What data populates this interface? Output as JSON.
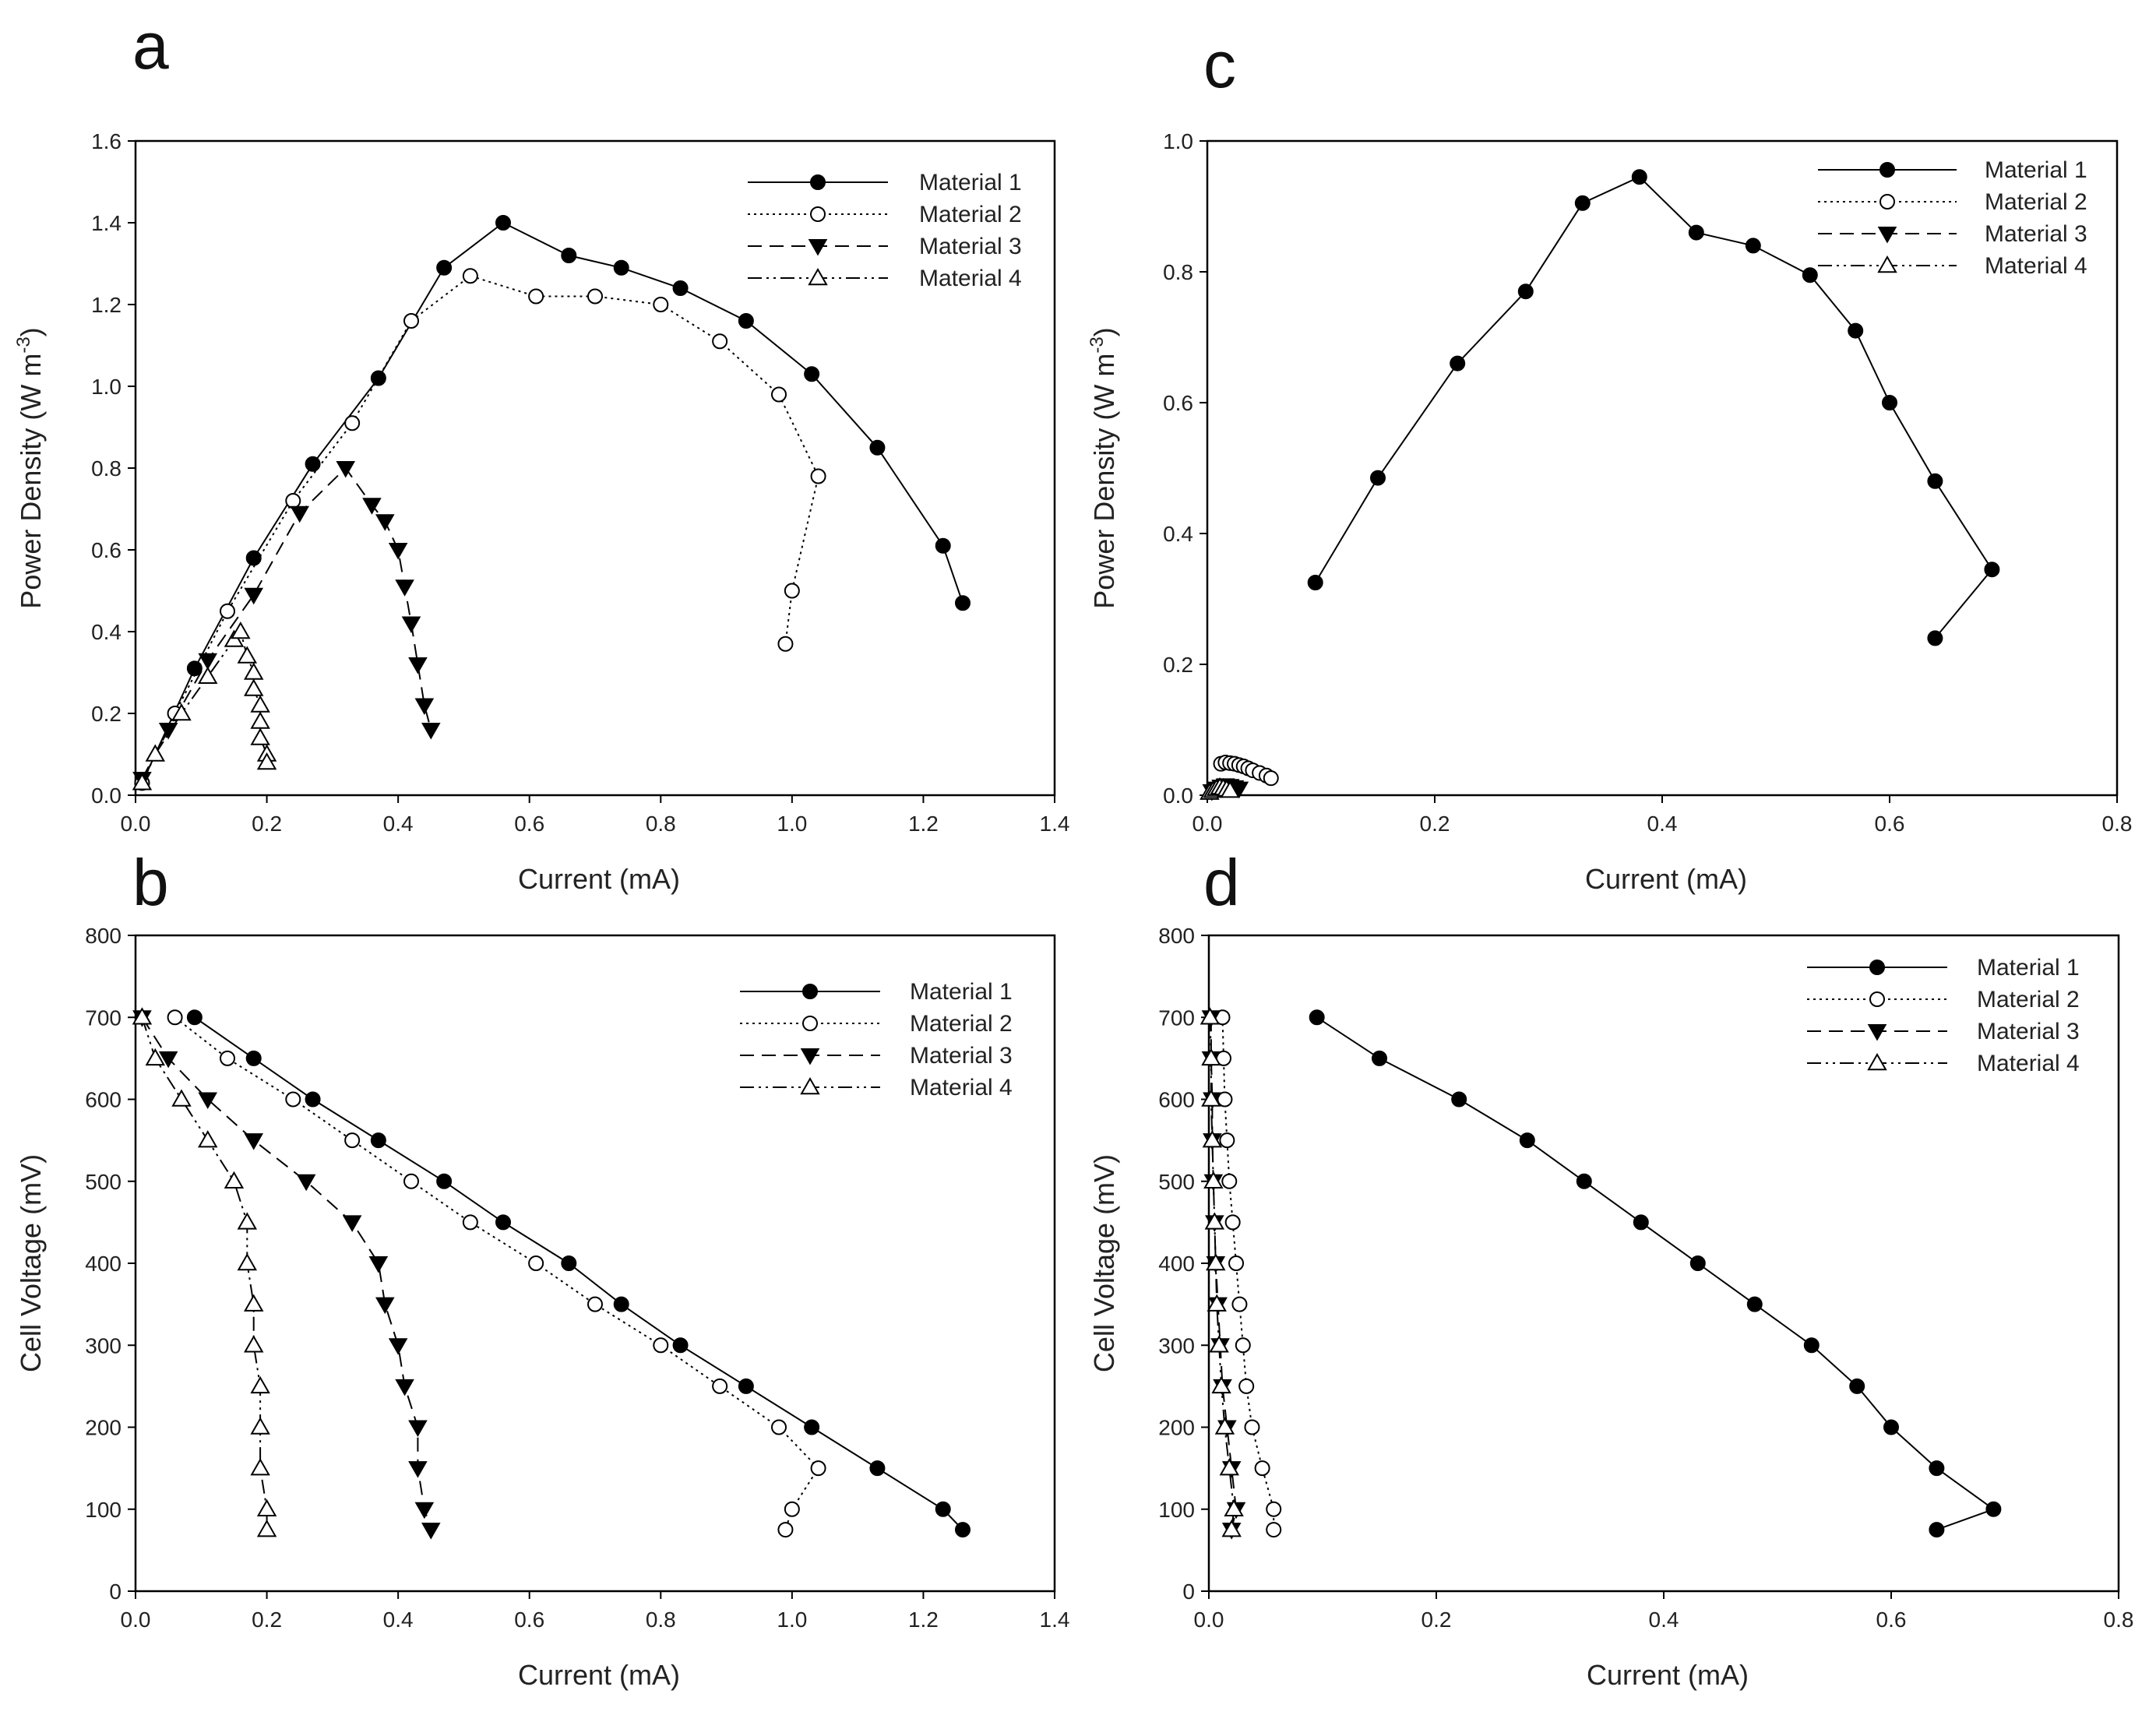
{
  "figure": {
    "description": "Four-panel figure: power density and cell voltage versus current for four materials"
  },
  "chart_data": [
    {
      "panel": "a",
      "type": "line",
      "title": "",
      "xlabel": "Current (mA)",
      "ylabel_main": "Power Density (W m",
      "ylabel_sup": "-3",
      "ylabel_end": ")",
      "xlim": [
        0,
        1.4
      ],
      "ylim": [
        0,
        1.6
      ],
      "xticks": [
        "0.0",
        "0.2",
        "0.4",
        "0.6",
        "0.8",
        "1.0",
        "1.2",
        "1.4"
      ],
      "yticks": [
        "0.0",
        "0.2",
        "0.4",
        "0.6",
        "0.8",
        "1.0",
        "1.2",
        "1.4",
        "1.6"
      ],
      "xtick_values": [
        0,
        0.2,
        0.4,
        0.6,
        0.8,
        1.0,
        1.2,
        1.4
      ],
      "ytick_values": [
        0,
        0.2,
        0.4,
        0.6,
        0.8,
        1.0,
        1.2,
        1.4,
        1.6
      ],
      "series": [
        {
          "name": "Material 1",
          "marker": "circle-filled",
          "dash": "solid",
          "x": [
            0.01,
            0.09,
            0.18,
            0.27,
            0.37,
            0.47,
            0.56,
            0.66,
            0.74,
            0.83,
            0.93,
            1.03,
            1.13,
            1.23,
            1.26
          ],
          "y": [
            0.03,
            0.31,
            0.58,
            0.81,
            1.02,
            1.29,
            1.4,
            1.32,
            1.29,
            1.24,
            1.16,
            1.03,
            0.85,
            0.61,
            0.47
          ]
        },
        {
          "name": "Material 2",
          "marker": "circle-open",
          "dash": "dotted",
          "x": [
            0.01,
            0.06,
            0.14,
            0.24,
            0.33,
            0.42,
            0.51,
            0.61,
            0.7,
            0.8,
            0.89,
            0.98,
            1.04,
            1.0,
            0.99
          ],
          "y": [
            0.03,
            0.2,
            0.45,
            0.72,
            0.91,
            1.16,
            1.27,
            1.22,
            1.22,
            1.2,
            1.11,
            0.98,
            0.78,
            0.5,
            0.37
          ]
        },
        {
          "name": "Material 3",
          "marker": "triangle-down-filled",
          "dash": "dashed",
          "x": [
            0.01,
            0.05,
            0.11,
            0.18,
            0.25,
            0.32,
            0.36,
            0.38,
            0.4,
            0.41,
            0.42,
            0.43,
            0.44,
            0.45
          ],
          "y": [
            0.04,
            0.16,
            0.33,
            0.49,
            0.69,
            0.8,
            0.71,
            0.67,
            0.6,
            0.51,
            0.42,
            0.32,
            0.22,
            0.16
          ]
        },
        {
          "name": "Material 4",
          "marker": "triangle-up-open",
          "dash": "dashdotdot",
          "x": [
            0.01,
            0.03,
            0.07,
            0.11,
            0.15,
            0.16,
            0.17,
            0.18,
            0.18,
            0.19,
            0.19,
            0.19,
            0.2,
            0.2
          ],
          "y": [
            0.03,
            0.1,
            0.2,
            0.29,
            0.38,
            0.4,
            0.34,
            0.3,
            0.26,
            0.22,
            0.18,
            0.14,
            0.1,
            0.08
          ]
        }
      ]
    },
    {
      "panel": "b",
      "type": "line",
      "title": "",
      "xlabel": "Current (mA)",
      "ylabel_main": "Cell Voltage (mV)",
      "ylabel_sup": "",
      "ylabel_end": "",
      "xlim": [
        0,
        1.4
      ],
      "ylim": [
        0,
        800
      ],
      "xticks": [
        "0.0",
        "0.2",
        "0.4",
        "0.6",
        "0.8",
        "1.0",
        "1.2",
        "1.4"
      ],
      "yticks": [
        "0",
        "100",
        "200",
        "300",
        "400",
        "500",
        "600",
        "700",
        "800"
      ],
      "xtick_values": [
        0,
        0.2,
        0.4,
        0.6,
        0.8,
        1.0,
        1.2,
        1.4
      ],
      "ytick_values": [
        0,
        100,
        200,
        300,
        400,
        500,
        600,
        700,
        800
      ],
      "series": [
        {
          "name": "Material 1",
          "marker": "circle-filled",
          "dash": "solid",
          "x": [
            0.09,
            0.18,
            0.27,
            0.37,
            0.47,
            0.56,
            0.66,
            0.74,
            0.83,
            0.93,
            1.03,
            1.13,
            1.23,
            1.26
          ],
          "y": [
            700,
            650,
            600,
            550,
            500,
            450,
            400,
            350,
            300,
            250,
            200,
            150,
            100,
            75
          ]
        },
        {
          "name": "Material 2",
          "marker": "circle-open",
          "dash": "dotted",
          "x": [
            0.06,
            0.14,
            0.24,
            0.33,
            0.42,
            0.51,
            0.61,
            0.7,
            0.8,
            0.89,
            0.98,
            1.04,
            1.0,
            0.99
          ],
          "y": [
            700,
            650,
            600,
            550,
            500,
            450,
            400,
            350,
            300,
            250,
            200,
            150,
            100,
            75
          ]
        },
        {
          "name": "Material 3",
          "marker": "triangle-down-filled",
          "dash": "dashed",
          "x": [
            0.01,
            0.05,
            0.11,
            0.18,
            0.26,
            0.33,
            0.37,
            0.38,
            0.4,
            0.41,
            0.43,
            0.43,
            0.44,
            0.45
          ],
          "y": [
            700,
            650,
            600,
            550,
            500,
            450,
            400,
            350,
            300,
            250,
            200,
            150,
            100,
            75
          ]
        },
        {
          "name": "Material 4",
          "marker": "triangle-up-open",
          "dash": "dashdotdot",
          "x": [
            0.01,
            0.03,
            0.07,
            0.11,
            0.15,
            0.17,
            0.17,
            0.18,
            0.18,
            0.19,
            0.19,
            0.19,
            0.2,
            0.2
          ],
          "y": [
            700,
            650,
            600,
            550,
            500,
            450,
            400,
            350,
            300,
            250,
            200,
            150,
            100,
            75
          ]
        }
      ]
    },
    {
      "panel": "c",
      "type": "line",
      "title": "",
      "xlabel": "Current (mA)",
      "ylabel_main": "Power Density (W m",
      "ylabel_sup": "-3",
      "ylabel_end": ")",
      "xlim": [
        0,
        0.8
      ],
      "ylim": [
        0,
        1.0
      ],
      "xticks": [
        "0.0",
        "0.2",
        "0.4",
        "0.6",
        "0.8"
      ],
      "yticks": [
        "0.0",
        "0.2",
        "0.4",
        "0.6",
        "0.8",
        "1.0"
      ],
      "xtick_values": [
        0,
        0.2,
        0.4,
        0.6,
        0.8
      ],
      "ytick_values": [
        0,
        0.2,
        0.4,
        0.6,
        0.8,
        1.0
      ],
      "series": [
        {
          "name": "Material 1",
          "marker": "circle-filled",
          "dash": "solid",
          "x": [
            0.095,
            0.15,
            0.22,
            0.28,
            0.33,
            0.38,
            0.43,
            0.48,
            0.53,
            0.57,
            0.6,
            0.64,
            0.69,
            0.64
          ],
          "y": [
            0.325,
            0.485,
            0.66,
            0.77,
            0.905,
            0.945,
            0.86,
            0.84,
            0.795,
            0.71,
            0.6,
            0.48,
            0.345,
            0.24
          ]
        },
        {
          "name": "Material 2",
          "marker": "circle-open",
          "dash": "dotted",
          "x": [
            0.012,
            0.016,
            0.02,
            0.024,
            0.028,
            0.032,
            0.036,
            0.04,
            0.046,
            0.052,
            0.056
          ],
          "y": [
            0.048,
            0.05,
            0.049,
            0.048,
            0.046,
            0.044,
            0.041,
            0.038,
            0.034,
            0.03,
            0.026
          ]
        },
        {
          "name": "Material 3",
          "marker": "triangle-down-filled",
          "dash": "dashed",
          "x": [
            0.004,
            0.008,
            0.012,
            0.016,
            0.02,
            0.024,
            0.028
          ],
          "y": [
            0.006,
            0.01,
            0.013,
            0.015,
            0.014,
            0.012,
            0.01
          ]
        },
        {
          "name": "Material 4",
          "marker": "triangle-up-open",
          "dash": "dashdotdot",
          "x": [
            0.002,
            0.005,
            0.008,
            0.011,
            0.014,
            0.017,
            0.02
          ],
          "y": [
            0.004,
            0.007,
            0.01,
            0.012,
            0.011,
            0.009,
            0.007
          ]
        }
      ]
    },
    {
      "panel": "d",
      "type": "line",
      "title": "",
      "xlabel": "Current (mA)",
      "ylabel_main": "Cell Voltage (mV)",
      "ylabel_sup": "",
      "ylabel_end": "",
      "xlim": [
        0,
        0.8
      ],
      "ylim": [
        0,
        800
      ],
      "xticks": [
        "0.0",
        "0.2",
        "0.4",
        "0.6",
        "0.8"
      ],
      "yticks": [
        "0",
        "100",
        "200",
        "300",
        "400",
        "500",
        "600",
        "700",
        "800"
      ],
      "xtick_values": [
        0,
        0.2,
        0.4,
        0.6,
        0.8
      ],
      "ytick_values": [
        0,
        100,
        200,
        300,
        400,
        500,
        600,
        700,
        800
      ],
      "series": [
        {
          "name": "Material 1",
          "marker": "circle-filled",
          "dash": "solid",
          "x": [
            0.095,
            0.15,
            0.22,
            0.28,
            0.33,
            0.38,
            0.43,
            0.48,
            0.53,
            0.57,
            0.6,
            0.64,
            0.69,
            0.64
          ],
          "y": [
            700,
            650,
            600,
            550,
            500,
            450,
            400,
            350,
            300,
            250,
            200,
            150,
            100,
            75
          ]
        },
        {
          "name": "Material 2",
          "marker": "circle-open",
          "dash": "dotted",
          "x": [
            0.012,
            0.013,
            0.014,
            0.016,
            0.018,
            0.021,
            0.024,
            0.027,
            0.03,
            0.033,
            0.038,
            0.047,
            0.057,
            0.057
          ],
          "y": [
            700,
            650,
            600,
            550,
            500,
            450,
            400,
            350,
            300,
            250,
            200,
            150,
            100,
            75
          ]
        },
        {
          "name": "Material 3",
          "marker": "triangle-down-filled",
          "dash": "dashed",
          "x": [
            0.002,
            0.002,
            0.003,
            0.003,
            0.004,
            0.005,
            0.006,
            0.008,
            0.01,
            0.012,
            0.016,
            0.02,
            0.024,
            0.02
          ],
          "y": [
            700,
            650,
            600,
            550,
            500,
            450,
            400,
            350,
            300,
            250,
            200,
            150,
            100,
            75
          ]
        },
        {
          "name": "Material 4",
          "marker": "triangle-up-open",
          "dash": "dashdotdot",
          "x": [
            0.001,
            0.002,
            0.002,
            0.003,
            0.004,
            0.005,
            0.006,
            0.007,
            0.009,
            0.011,
            0.014,
            0.018,
            0.022,
            0.02
          ],
          "y": [
            700,
            650,
            600,
            550,
            500,
            450,
            400,
            350,
            300,
            250,
            200,
            150,
            100,
            75
          ]
        }
      ]
    }
  ]
}
